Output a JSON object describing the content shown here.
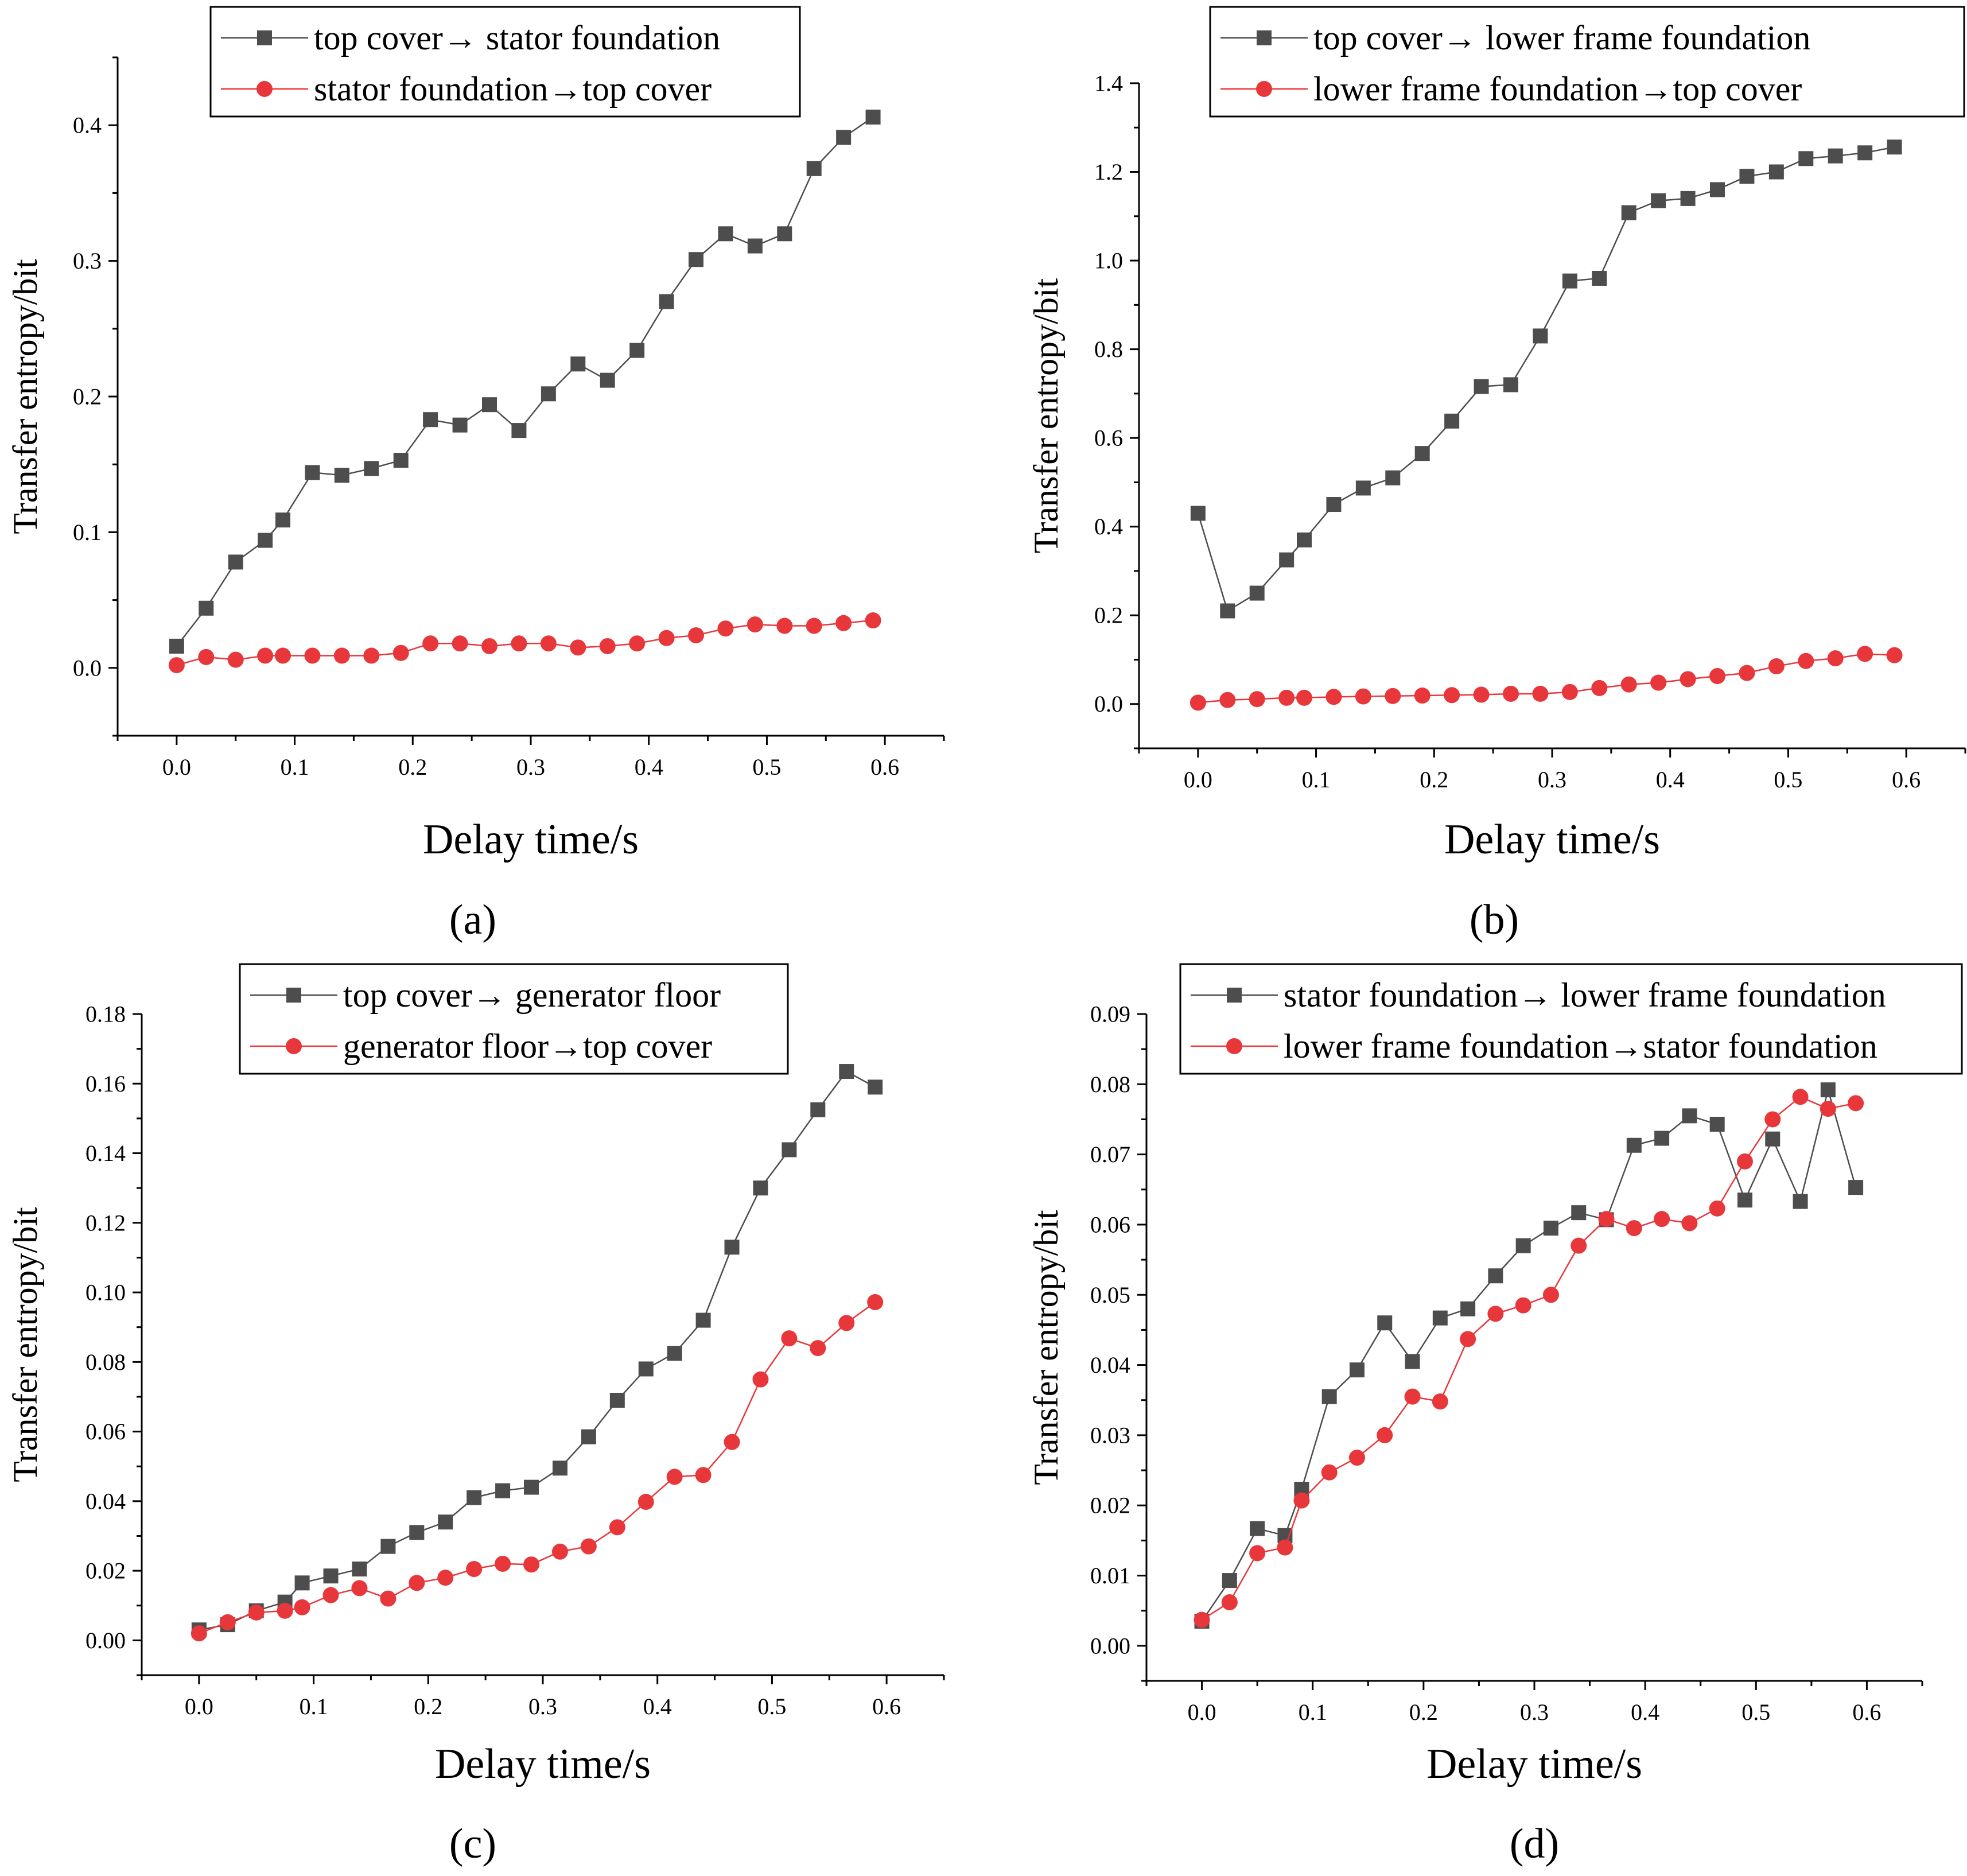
{
  "figure": {
    "panels": [
      "(a)",
      "(b)",
      "(c)",
      "(d)"
    ]
  },
  "chart_data": [
    {
      "panel_label": "(a)",
      "type": "line",
      "xlabel": "Delay time/s",
      "ylabel": "Transfer entropy/bit",
      "xlim": [
        -0.05,
        0.65
      ],
      "ylim": [
        -0.05,
        0.45
      ],
      "xticks": [
        0.0,
        0.1,
        0.2,
        0.3,
        0.4,
        0.5,
        0.6
      ],
      "xtick_labels": [
        "0.0",
        "0.1",
        "0.2",
        "0.3",
        "0.4",
        "0.5",
        "0.6"
      ],
      "yticks": [
        0.0,
        0.1,
        0.2,
        0.3,
        0.4
      ],
      "ytick_labels": [
        "0.0",
        "0.1",
        "0.2",
        "0.3",
        "0.4"
      ],
      "legend_position": "top-left",
      "x": [
        0.0,
        0.025,
        0.05,
        0.075,
        0.09,
        0.115,
        0.14,
        0.165,
        0.19,
        0.215,
        0.24,
        0.265,
        0.29,
        0.315,
        0.34,
        0.365,
        0.39,
        0.415,
        0.44,
        0.465,
        0.49,
        0.515,
        0.54,
        0.565,
        0.59
      ],
      "series": [
        {
          "name": "top cover→ stator foundation",
          "marker": "square",
          "color": "#4d4d4d",
          "values": [
            0.016,
            0.044,
            0.078,
            0.094,
            0.109,
            0.144,
            0.142,
            0.147,
            0.153,
            0.183,
            0.179,
            0.194,
            0.175,
            0.202,
            0.224,
            0.212,
            0.234,
            0.27,
            0.301,
            0.32,
            0.311,
            0.32,
            0.368,
            0.391,
            0.406
          ]
        },
        {
          "name": "stator foundation→top cover",
          "marker": "circle",
          "color": "#e8373b",
          "values": [
            0.002,
            0.008,
            0.006,
            0.009,
            0.009,
            0.009,
            0.009,
            0.009,
            0.011,
            0.018,
            0.018,
            0.016,
            0.018,
            0.018,
            0.015,
            0.016,
            0.018,
            0.022,
            0.024,
            0.029,
            0.032,
            0.031,
            0.031,
            0.033,
            0.035
          ]
        }
      ]
    },
    {
      "panel_label": "(b)",
      "type": "line",
      "xlabel": "Delay time/s",
      "ylabel": "Transfer entropy/bit",
      "xlim": [
        -0.05,
        0.65
      ],
      "ylim": [
        -0.1,
        1.4
      ],
      "xticks": [
        0.0,
        0.1,
        0.2,
        0.3,
        0.4,
        0.5,
        0.6
      ],
      "xtick_labels": [
        "0.0",
        "0.1",
        "0.2",
        "0.3",
        "0.4",
        "0.5",
        "0.6"
      ],
      "yticks": [
        0.0,
        0.2,
        0.4,
        0.6,
        0.8,
        1.0,
        1.2,
        1.4
      ],
      "ytick_labels": [
        "0.0",
        "0.2",
        "0.4",
        "0.6",
        "0.8",
        "1.0",
        "1.2",
        "1.4"
      ],
      "legend_position": "top-right",
      "x": [
        0.0,
        0.025,
        0.05,
        0.075,
        0.09,
        0.115,
        0.14,
        0.165,
        0.19,
        0.215,
        0.24,
        0.265,
        0.29,
        0.315,
        0.34,
        0.365,
        0.39,
        0.415,
        0.44,
        0.465,
        0.49,
        0.515,
        0.54,
        0.565,
        0.59
      ],
      "series": [
        {
          "name": "top cover→ lower frame foundation",
          "marker": "square",
          "color": "#4d4d4d",
          "values": [
            0.43,
            0.21,
            0.25,
            0.325,
            0.37,
            0.45,
            0.487,
            0.51,
            0.565,
            0.638,
            0.716,
            0.72,
            0.83,
            0.954,
            0.96,
            1.108,
            1.135,
            1.14,
            1.16,
            1.19,
            1.2,
            1.23,
            1.236,
            1.243,
            1.256
          ]
        },
        {
          "name": "lower frame foundation→top cover",
          "marker": "circle",
          "color": "#e8373b",
          "values": [
            0.003,
            0.009,
            0.011,
            0.014,
            0.014,
            0.016,
            0.017,
            0.018,
            0.019,
            0.02,
            0.021,
            0.023,
            0.023,
            0.027,
            0.036,
            0.044,
            0.048,
            0.056,
            0.063,
            0.07,
            0.085,
            0.097,
            0.103,
            0.113,
            0.11
          ]
        }
      ]
    },
    {
      "panel_label": "(c)",
      "type": "line",
      "xlabel": "Delay time/s",
      "ylabel": "Transfer entropy/bit",
      "xlim": [
        -0.05,
        0.65
      ],
      "ylim": [
        -0.01,
        0.18
      ],
      "xticks": [
        0.0,
        0.1,
        0.2,
        0.3,
        0.4,
        0.5,
        0.6
      ],
      "xtick_labels": [
        "0.0",
        "0.1",
        "0.2",
        "0.3",
        "0.4",
        "0.5",
        "0.6"
      ],
      "yticks": [
        0.0,
        0.02,
        0.04,
        0.06,
        0.08,
        0.1,
        0.12,
        0.14,
        0.16,
        0.18
      ],
      "ytick_labels": [
        "0.00",
        "0.02",
        "0.04",
        "0.06",
        "0.08",
        "0.10",
        "0.12",
        "0.14",
        "0.16",
        "0.18"
      ],
      "legend_position": "top-right",
      "x": [
        0.0,
        0.025,
        0.05,
        0.075,
        0.09,
        0.115,
        0.14,
        0.165,
        0.19,
        0.215,
        0.24,
        0.265,
        0.29,
        0.315,
        0.34,
        0.365,
        0.39,
        0.415,
        0.44,
        0.465,
        0.49,
        0.515,
        0.54,
        0.565,
        0.59
      ],
      "series": [
        {
          "name": "top cover→ generator floor",
          "marker": "square",
          "color": "#4d4d4d",
          "values": [
            0.003,
            0.0045,
            0.0085,
            0.011,
            0.0165,
            0.0185,
            0.0205,
            0.027,
            0.031,
            0.034,
            0.041,
            0.043,
            0.044,
            0.0495,
            0.0585,
            0.069,
            0.078,
            0.0825,
            0.092,
            0.113,
            0.13,
            0.141,
            0.1525,
            0.1635,
            0.159
          ]
        },
        {
          "name": "generator floor→top cover",
          "marker": "circle",
          "color": "#e8373b",
          "values": [
            0.002,
            0.0052,
            0.008,
            0.0085,
            0.0095,
            0.013,
            0.015,
            0.012,
            0.0165,
            0.018,
            0.0205,
            0.022,
            0.0218,
            0.0255,
            0.027,
            0.0325,
            0.0398,
            0.047,
            0.0475,
            0.057,
            0.075,
            0.0868,
            0.084,
            0.0912,
            0.0972
          ]
        }
      ]
    },
    {
      "panel_label": "(d)",
      "type": "line",
      "xlabel": "Delay time/s",
      "ylabel": "Transfer entropy/bit",
      "xlim": [
        -0.05,
        0.65
      ],
      "ylim": [
        -0.005,
        0.09
      ],
      "xticks": [
        0.0,
        0.1,
        0.2,
        0.3,
        0.4,
        0.5,
        0.6
      ],
      "xtick_labels": [
        "0.0",
        "0.1",
        "0.2",
        "0.3",
        "0.4",
        "0.5",
        "0.6"
      ],
      "yticks": [
        0.0,
        0.01,
        0.02,
        0.03,
        0.04,
        0.05,
        0.06,
        0.07,
        0.08,
        0.09
      ],
      "ytick_labels": [
        "0.00",
        "0.01",
        "0.02",
        "0.03",
        "0.04",
        "0.05",
        "0.06",
        "0.07",
        "0.08",
        "0.09"
      ],
      "legend_position": "top-right",
      "x": [
        0.0,
        0.025,
        0.05,
        0.075,
        0.09,
        0.115,
        0.14,
        0.165,
        0.19,
        0.215,
        0.24,
        0.265,
        0.29,
        0.315,
        0.34,
        0.365,
        0.39,
        0.415,
        0.44,
        0.465,
        0.49,
        0.515,
        0.54,
        0.565,
        0.59
      ],
      "series": [
        {
          "name": "stator foundation→ lower frame foundation",
          "marker": "square",
          "color": "#4d4d4d",
          "values": [
            0.0035,
            0.0093,
            0.0167,
            0.0157,
            0.0223,
            0.0355,
            0.0393,
            0.046,
            0.0405,
            0.0467,
            0.048,
            0.0527,
            0.057,
            0.0595,
            0.0617,
            0.0607,
            0.0713,
            0.0723,
            0.0755,
            0.0743,
            0.0635,
            0.0722,
            0.0633,
            0.0792,
            0.0653
          ]
        },
        {
          "name": "lower frame foundation→stator foundation",
          "marker": "circle",
          "color": "#e8373b",
          "values": [
            0.0037,
            0.0062,
            0.0132,
            0.014,
            0.0207,
            0.0247,
            0.0268,
            0.03,
            0.0355,
            0.0348,
            0.0437,
            0.0473,
            0.0485,
            0.05,
            0.057,
            0.0608,
            0.0595,
            0.0608,
            0.0602,
            0.0623,
            0.069,
            0.075,
            0.0782,
            0.0765,
            0.0773
          ]
        }
      ]
    }
  ]
}
